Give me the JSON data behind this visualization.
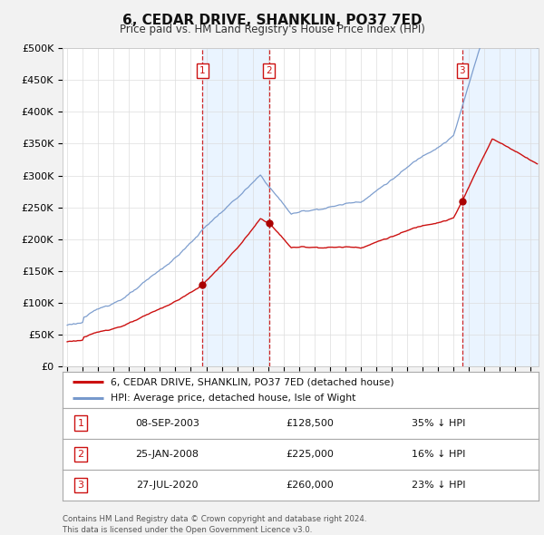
{
  "title": "6, CEDAR DRIVE, SHANKLIN, PO37 7ED",
  "subtitle": "Price paid vs. HM Land Registry's House Price Index (HPI)",
  "background_color": "#f2f2f2",
  "plot_bg_color": "#ffffff",
  "ylim": [
    0,
    500000
  ],
  "yticks": [
    0,
    50000,
    100000,
    150000,
    200000,
    250000,
    300000,
    350000,
    400000,
    450000,
    500000
  ],
  "ytick_labels": [
    "£0",
    "£50K",
    "£100K",
    "£150K",
    "£200K",
    "£250K",
    "£300K",
    "£350K",
    "£400K",
    "£450K",
    "£500K"
  ],
  "sale_dates": [
    2003.75,
    2008.07,
    2020.57
  ],
  "sale_prices": [
    128500,
    225000,
    260000
  ],
  "sale_labels": [
    "1",
    "2",
    "3"
  ],
  "legend_entries": [
    "6, CEDAR DRIVE, SHANKLIN, PO37 7ED (detached house)",
    "HPI: Average price, detached house, Isle of Wight"
  ],
  "table_rows": [
    [
      "1",
      "08-SEP-2003",
      "£128,500",
      "35% ↓ HPI"
    ],
    [
      "2",
      "25-JAN-2008",
      "£225,000",
      "16% ↓ HPI"
    ],
    [
      "3",
      "27-JUL-2020",
      "£260,000",
      "23% ↓ HPI"
    ]
  ],
  "footer_text": "Contains HM Land Registry data © Crown copyright and database right 2024.\nThis data is licensed under the Open Government Licence v3.0.",
  "xmin": 1994.7,
  "xmax": 2025.5
}
